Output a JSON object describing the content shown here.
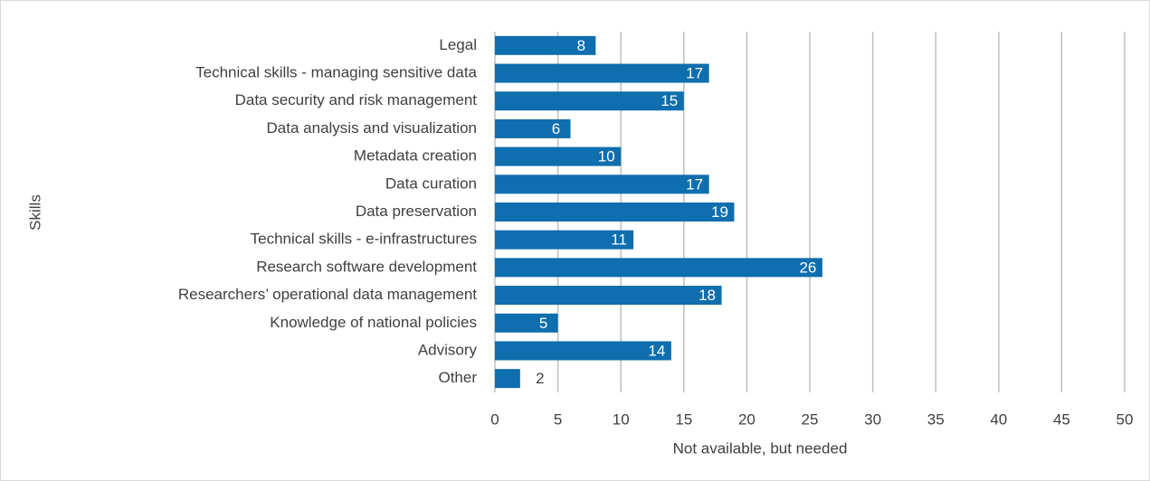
{
  "chart_data": {
    "type": "bar",
    "orientation": "horizontal",
    "x_label": "Not available, but needed",
    "y_label": "Skills",
    "categories": [
      "Legal",
      "Technical skills - managing sensitive data",
      "Data security and risk management",
      "Data analysis and visualization",
      "Metadata creation",
      "Data curation",
      "Data preservation",
      "Technical skills - e-infrastructures",
      "Research software development",
      "Researchers’ operational data management",
      "Knowledge of national policies",
      "Advisory",
      "Other"
    ],
    "values": [
      8,
      17,
      15,
      6,
      10,
      17,
      19,
      11,
      26,
      18,
      5,
      14,
      2
    ],
    "color": "#0f6ead",
    "xlim": [
      0,
      50
    ],
    "xticks": [
      0,
      5,
      10,
      15,
      20,
      25,
      30,
      35,
      40,
      45,
      50
    ],
    "grid": true
  }
}
